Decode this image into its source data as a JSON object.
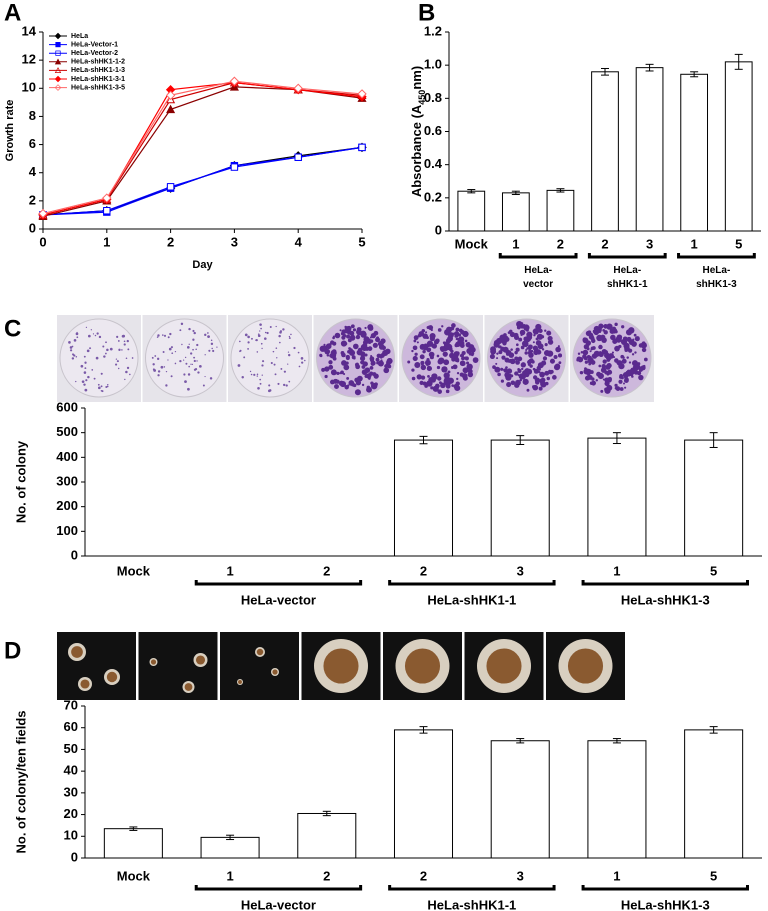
{
  "chart_data": [
    {
      "type": "line",
      "panel": "A",
      "xlabel": "Day",
      "ylabel": "Growth rate",
      "x": [
        0,
        1,
        2,
        3,
        4,
        5
      ],
      "xlim": [
        0,
        5
      ],
      "xticks": [
        0,
        1,
        2,
        3,
        4,
        5
      ],
      "ylim": [
        0,
        14
      ],
      "yticks": [
        0,
        2,
        4,
        6,
        8,
        10,
        12,
        14
      ],
      "legend": "upper left",
      "grid": false,
      "series": [
        {
          "name": "HeLa",
          "color": "#000000",
          "marker": "diamond",
          "filled": true,
          "values": [
            1.0,
            1.3,
            2.9,
            4.5,
            5.2,
            5.8
          ]
        },
        {
          "name": "HeLa-Vector-1",
          "color": "#0000ff",
          "marker": "square",
          "filled": true,
          "values": [
            1.0,
            1.2,
            2.9,
            4.5,
            5.1,
            5.8
          ]
        },
        {
          "name": "HeLa-Vector-2",
          "color": "#0000ff",
          "marker": "square",
          "filled": false,
          "values": [
            1.0,
            1.3,
            3.0,
            4.4,
            5.1,
            5.8
          ]
        },
        {
          "name": "HeLa-shHK1-1-2",
          "color": "#8b0000",
          "marker": "triangle",
          "filled": true,
          "values": [
            0.9,
            2.0,
            8.5,
            10.1,
            9.9,
            9.3
          ]
        },
        {
          "name": "HeLa-shHK1-1-3",
          "color": "#cc0000",
          "marker": "triangle",
          "filled": false,
          "values": [
            1.0,
            2.1,
            9.2,
            10.4,
            9.9,
            9.5
          ]
        },
        {
          "name": "HeLa-shHK1-3-1",
          "color": "#ff0000",
          "marker": "diamond",
          "filled": true,
          "values": [
            1.0,
            2.1,
            9.9,
            10.4,
            9.9,
            9.4
          ]
        },
        {
          "name": "HeLa-shHK1-3-5",
          "color": "#ff6666",
          "marker": "diamond",
          "filled": false,
          "values": [
            1.1,
            2.2,
            9.5,
            10.5,
            10.0,
            9.6
          ]
        }
      ]
    },
    {
      "type": "bar",
      "panel": "B",
      "ylabel": [
        "Absorbance (A",
        "450",
        "nm)"
      ],
      "categories": [
        "Mock",
        "1",
        "2",
        "2",
        "3",
        "1",
        "5"
      ],
      "groups": [
        null,
        "HeLa-vector",
        "HeLa-vector",
        "HeLa-shHK1-1",
        "HeLa-shHK1-1",
        "HeLa-shHK1-3",
        "HeLa-shHK1-3"
      ],
      "values": [
        0.24,
        0.23,
        0.245,
        0.96,
        0.985,
        0.945,
        1.02
      ],
      "errors": [
        0.01,
        0.01,
        0.01,
        0.02,
        0.02,
        0.015,
        0.045
      ],
      "color": "#ffffff",
      "ylim": [
        0,
        1.2
      ],
      "yticks": [
        0,
        0.2,
        0.4,
        0.6,
        0.8,
        {
          "value": 1,
          "label": "1.0"
        },
        1.2
      ],
      "grid": false
    },
    {
      "type": "bar",
      "panel": "C",
      "ylabel": "No. of colony",
      "categories": [
        "Mock",
        "1",
        "2",
        "2",
        "3",
        "1",
        "5"
      ],
      "groups": [
        null,
        "HeLa-vector",
        "HeLa-vector",
        "HeLa-shHK1-1",
        "HeLa-shHK1-1",
        "HeLa-shHK1-3",
        "HeLa-shHK1-3"
      ],
      "values": [
        0,
        0,
        0,
        470,
        470,
        478,
        470
      ],
      "errors": [
        null,
        null,
        null,
        15,
        18,
        22,
        30
      ],
      "color": "#ffffff",
      "ylim": [
        0,
        600
      ],
      "yticks": [
        0,
        100,
        200,
        300,
        400,
        500,
        600
      ],
      "grid": false
    },
    {
      "type": "bar",
      "panel": "D",
      "ylabel": "No. of colony/ten fields",
      "categories": [
        "Mock",
        "1",
        "2",
        "2",
        "3",
        "1",
        "5"
      ],
      "groups": [
        null,
        "HeLa-vector",
        "HeLa-vector",
        "HeLa-shHK1-1",
        "HeLa-shHK1-1",
        "HeLa-shHK1-3",
        "HeLa-shHK1-3"
      ],
      "values": [
        13.5,
        9.5,
        20.5,
        59,
        54,
        54,
        59
      ],
      "errors": [
        0.8,
        1,
        1,
        1.5,
        1,
        1,
        1.5
      ],
      "color": "#ffffff",
      "ylim": [
        0,
        70
      ],
      "yticks": [
        0,
        10,
        20,
        30,
        40,
        50,
        60,
        70
      ],
      "grid": false
    }
  ]
}
